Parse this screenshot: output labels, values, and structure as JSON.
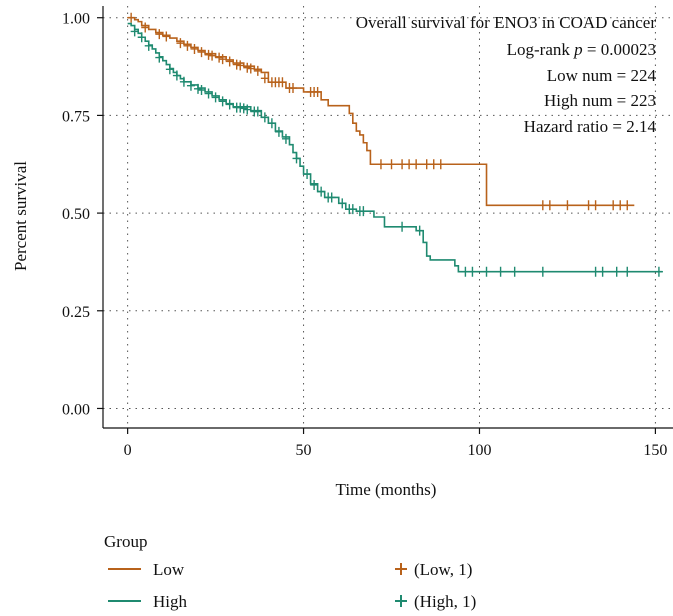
{
  "chart_data": {
    "type": "line",
    "subtype": "kaplan-meier",
    "xlabel": "Time (months)",
    "ylabel": "Percent survival",
    "xlim": [
      -7,
      155
    ],
    "ylim": [
      -0.05,
      1.03
    ],
    "xticks": [
      0,
      50,
      100,
      150
    ],
    "xtick_labels": [
      "0",
      "50",
      "100",
      "150"
    ],
    "yticks": [
      0,
      0.25,
      0.5,
      0.75,
      1
    ],
    "ytick_labels": [
      "0.00",
      "0.25",
      "0.50",
      "0.75",
      "1.00"
    ],
    "grid": "dotted",
    "annotations": [
      "Overall survival for ENO3 in COAD cancer",
      "Log-rank",
      "p",
      "= 0.00023",
      "Low num = 224",
      "High num = 223",
      "Hazard ratio = 2.14"
    ],
    "legend": {
      "title": "Group",
      "line_entries": [
        "Low",
        "High"
      ],
      "censor_entries": [
        "(Low, 1)",
        "(High, 1)"
      ],
      "placement": "bottom"
    },
    "series": [
      {
        "name": "Low",
        "color": "#B8621B",
        "steps": [
          [
            0,
            1.0
          ],
          [
            2,
            0.995
          ],
          [
            3,
            0.99
          ],
          [
            4,
            0.98
          ],
          [
            6,
            0.97
          ],
          [
            8,
            0.962
          ],
          [
            10,
            0.955
          ],
          [
            12,
            0.948
          ],
          [
            14,
            0.94
          ],
          [
            16,
            0.932
          ],
          [
            18,
            0.924
          ],
          [
            20,
            0.916
          ],
          [
            22,
            0.908
          ],
          [
            25,
            0.9
          ],
          [
            28,
            0.892
          ],
          [
            30,
            0.884
          ],
          [
            33,
            0.876
          ],
          [
            36,
            0.868
          ],
          [
            38,
            0.86
          ],
          [
            40,
            0.835
          ],
          [
            45,
            0.82
          ],
          [
            50,
            0.81
          ],
          [
            55,
            0.79
          ],
          [
            57,
            0.775
          ],
          [
            63,
            0.755
          ],
          [
            64,
            0.73
          ],
          [
            65,
            0.71
          ],
          [
            66,
            0.7
          ],
          [
            67,
            0.68
          ],
          [
            68,
            0.66
          ],
          [
            69,
            0.625
          ],
          [
            102,
            0.52
          ],
          [
            144,
            0.52
          ]
        ],
        "censors": [
          [
            1,
            1.0
          ],
          [
            5,
            0.975
          ],
          [
            9,
            0.958
          ],
          [
            11,
            0.952
          ],
          [
            15,
            0.935
          ],
          [
            17,
            0.928
          ],
          [
            19,
            0.92
          ],
          [
            21,
            0.912
          ],
          [
            23,
            0.905
          ],
          [
            24,
            0.903
          ],
          [
            26,
            0.898
          ],
          [
            27,
            0.894
          ],
          [
            29,
            0.888
          ],
          [
            31,
            0.88
          ],
          [
            32,
            0.878
          ],
          [
            34,
            0.872
          ],
          [
            35,
            0.87
          ],
          [
            37,
            0.864
          ],
          [
            39,
            0.845
          ],
          [
            41,
            0.835
          ],
          [
            42,
            0.835
          ],
          [
            43,
            0.835
          ],
          [
            44,
            0.835
          ],
          [
            46,
            0.82
          ],
          [
            47,
            0.82
          ],
          [
            52,
            0.81
          ],
          [
            53,
            0.81
          ],
          [
            54,
            0.81
          ],
          [
            72,
            0.625
          ],
          [
            75,
            0.625
          ],
          [
            78,
            0.625
          ],
          [
            80,
            0.625
          ],
          [
            82,
            0.625
          ],
          [
            85,
            0.625
          ],
          [
            87,
            0.625
          ],
          [
            89,
            0.625
          ],
          [
            118,
            0.52
          ],
          [
            120,
            0.52
          ],
          [
            125,
            0.52
          ],
          [
            131,
            0.52
          ],
          [
            133,
            0.52
          ],
          [
            138,
            0.52
          ],
          [
            140,
            0.52
          ],
          [
            142,
            0.52
          ]
        ]
      },
      {
        "name": "High",
        "color": "#1F8A70",
        "steps": [
          [
            0,
            0.985
          ],
          [
            1,
            0.98
          ],
          [
            2,
            0.97
          ],
          [
            3,
            0.96
          ],
          [
            4,
            0.95
          ],
          [
            5,
            0.94
          ],
          [
            6,
            0.93
          ],
          [
            7,
            0.92
          ],
          [
            8,
            0.91
          ],
          [
            9,
            0.9
          ],
          [
            10,
            0.89
          ],
          [
            11,
            0.88
          ],
          [
            12,
            0.87
          ],
          [
            13,
            0.86
          ],
          [
            14,
            0.852
          ],
          [
            15,
            0.844
          ],
          [
            16,
            0.836
          ],
          [
            18,
            0.828
          ],
          [
            20,
            0.82
          ],
          [
            22,
            0.81
          ],
          [
            24,
            0.8
          ],
          [
            26,
            0.79
          ],
          [
            28,
            0.78
          ],
          [
            30,
            0.772
          ],
          [
            35,
            0.762
          ],
          [
            38,
            0.745
          ],
          [
            40,
            0.73
          ],
          [
            42,
            0.71
          ],
          [
            44,
            0.695
          ],
          [
            46,
            0.675
          ],
          [
            47,
            0.655
          ],
          [
            48,
            0.64
          ],
          [
            49,
            0.62
          ],
          [
            50,
            0.6
          ],
          [
            52,
            0.575
          ],
          [
            54,
            0.555
          ],
          [
            56,
            0.54
          ],
          [
            60,
            0.525
          ],
          [
            62,
            0.51
          ],
          [
            65,
            0.505
          ],
          [
            70,
            0.49
          ],
          [
            72,
            0.49
          ],
          [
            73,
            0.465
          ],
          [
            82,
            0.455
          ],
          [
            84,
            0.425
          ],
          [
            85,
            0.39
          ],
          [
            86,
            0.38
          ],
          [
            93,
            0.365
          ],
          [
            94,
            0.35
          ],
          [
            152,
            0.35
          ]
        ],
        "censors": [
          [
            2,
            0.965
          ],
          [
            4,
            0.95
          ],
          [
            6,
            0.928
          ],
          [
            9,
            0.898
          ],
          [
            12,
            0.868
          ],
          [
            14,
            0.852
          ],
          [
            16,
            0.836
          ],
          [
            18,
            0.826
          ],
          [
            20,
            0.818
          ],
          [
            21,
            0.815
          ],
          [
            23,
            0.806
          ],
          [
            25,
            0.796
          ],
          [
            27,
            0.786
          ],
          [
            29,
            0.778
          ],
          [
            31,
            0.77
          ],
          [
            32,
            0.77
          ],
          [
            33,
            0.768
          ],
          [
            34,
            0.765
          ],
          [
            36,
            0.76
          ],
          [
            37,
            0.76
          ],
          [
            39,
            0.745
          ],
          [
            41,
            0.73
          ],
          [
            43,
            0.708
          ],
          [
            45,
            0.69
          ],
          [
            48,
            0.64
          ],
          [
            51,
            0.6
          ],
          [
            53,
            0.572
          ],
          [
            55,
            0.555
          ],
          [
            57,
            0.54
          ],
          [
            58,
            0.54
          ],
          [
            61,
            0.525
          ],
          [
            63,
            0.51
          ],
          [
            64,
            0.51
          ],
          [
            66,
            0.505
          ],
          [
            67,
            0.505
          ],
          [
            78,
            0.465
          ],
          [
            83,
            0.455
          ],
          [
            96,
            0.35
          ],
          [
            98,
            0.35
          ],
          [
            102,
            0.35
          ],
          [
            106,
            0.35
          ],
          [
            110,
            0.35
          ],
          [
            118,
            0.35
          ],
          [
            133,
            0.35
          ],
          [
            135,
            0.35
          ],
          [
            139,
            0.35
          ],
          [
            142,
            0.35
          ],
          [
            151,
            0.35
          ]
        ]
      }
    ]
  }
}
